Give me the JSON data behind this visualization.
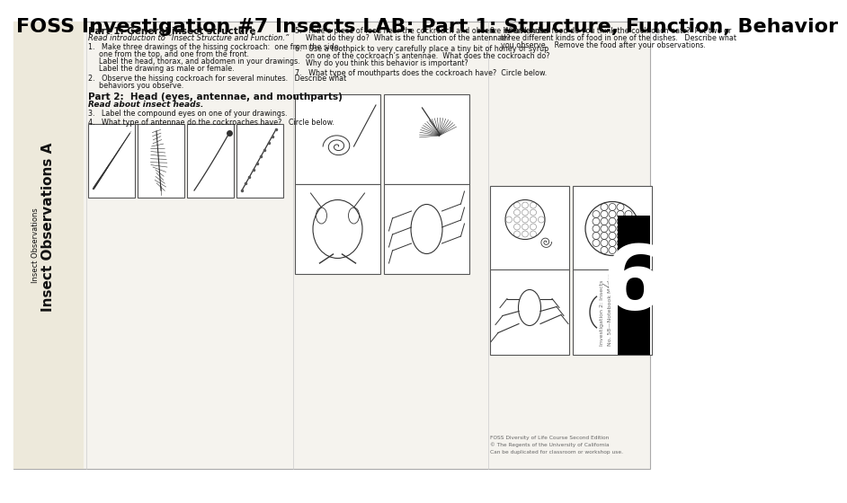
{
  "title": "FOSS Investigation #7 Insects LAB: Part 1: Structure, Function, Behavior",
  "title_fontsize": 16,
  "title_fontweight": "bold",
  "title_color": "#000000",
  "background_color": "#ffffff",
  "page_number": "6",
  "page_number_bg": "#000000",
  "page_number_color": "#ffffff",
  "page_number_fontsize": 72,
  "content_bg": "#f5f3ee",
  "border_color": "#555555",
  "text_color": "#111111",
  "faint_text_color": "#777777",
  "header_title": "Insect Observations A",
  "header_subtitle1": "Insect Observations",
  "header_subtitle2": "General insect structure",
  "left_rotated_label": "Insect Observations A",
  "section_heading_size": 7.5,
  "body_text_size": 5.8,
  "small_text_size": 4.5
}
